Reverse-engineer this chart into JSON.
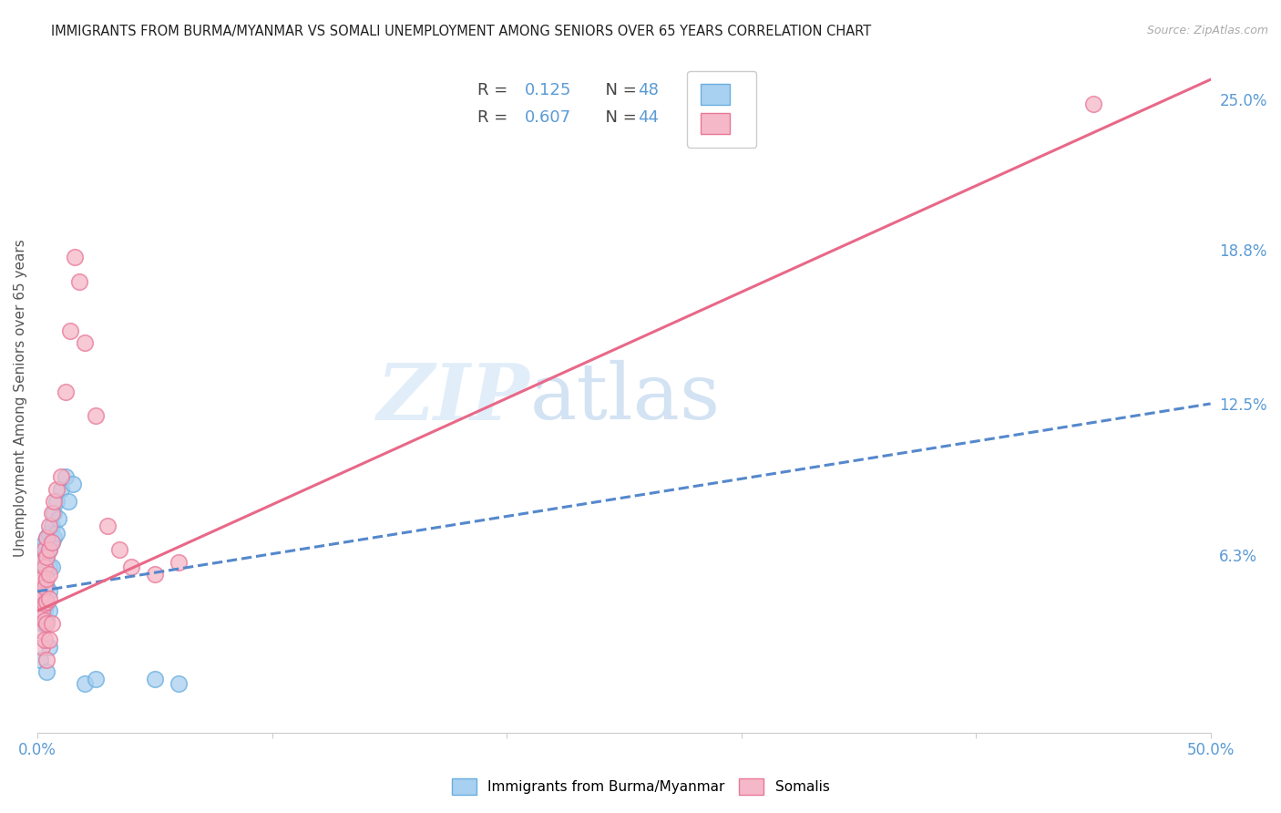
{
  "title": "IMMIGRANTS FROM BURMA/MYANMAR VS SOMALI UNEMPLOYMENT AMONG SENIORS OVER 65 YEARS CORRELATION CHART",
  "source": "Source: ZipAtlas.com",
  "ylabel": "Unemployment Among Seniors over 65 years",
  "xlim": [
    0,
    0.5
  ],
  "ylim": [
    -0.01,
    0.265
  ],
  "yticks_right": [
    0.0,
    0.063,
    0.125,
    0.188,
    0.25
  ],
  "ytick_right_labels": [
    "",
    "6.3%",
    "12.5%",
    "18.8%",
    "25.0%"
  ],
  "watermark_zip": "ZIP",
  "watermark_atlas": "atlas",
  "blue_color": "#a8d0f0",
  "pink_color": "#f5b8c8",
  "blue_edge_color": "#6aaee0",
  "pink_edge_color": "#e87898",
  "blue_line_color": "#5588cc",
  "pink_line_color": "#e86888",
  "title_color": "#222222",
  "axis_label_color": "#555555",
  "tick_color": "#5b9bd5",
  "grid_color": "#dddddd",
  "scatter_blue": [
    [
      0.001,
      0.062
    ],
    [
      0.001,
      0.055
    ],
    [
      0.001,
      0.048
    ],
    [
      0.001,
      0.042
    ],
    [
      0.002,
      0.065
    ],
    [
      0.002,
      0.058
    ],
    [
      0.002,
      0.053
    ],
    [
      0.002,
      0.048
    ],
    [
      0.002,
      0.044
    ],
    [
      0.002,
      0.04
    ],
    [
      0.002,
      0.035
    ],
    [
      0.003,
      0.068
    ],
    [
      0.003,
      0.062
    ],
    [
      0.003,
      0.056
    ],
    [
      0.003,
      0.05
    ],
    [
      0.003,
      0.045
    ],
    [
      0.003,
      0.04
    ],
    [
      0.003,
      0.035
    ],
    [
      0.004,
      0.07
    ],
    [
      0.004,
      0.063
    ],
    [
      0.004,
      0.057
    ],
    [
      0.004,
      0.05
    ],
    [
      0.004,
      0.043
    ],
    [
      0.004,
      0.036
    ],
    [
      0.005,
      0.072
    ],
    [
      0.005,
      0.065
    ],
    [
      0.005,
      0.058
    ],
    [
      0.005,
      0.048
    ],
    [
      0.005,
      0.04
    ],
    [
      0.006,
      0.075
    ],
    [
      0.006,
      0.068
    ],
    [
      0.006,
      0.058
    ],
    [
      0.007,
      0.08
    ],
    [
      0.007,
      0.07
    ],
    [
      0.008,
      0.085
    ],
    [
      0.008,
      0.072
    ],
    [
      0.009,
      0.078
    ],
    [
      0.01,
      0.09
    ],
    [
      0.012,
      0.095
    ],
    [
      0.013,
      0.085
    ],
    [
      0.015,
      0.092
    ],
    [
      0.02,
      0.01
    ],
    [
      0.025,
      0.012
    ],
    [
      0.001,
      0.02
    ],
    [
      0.004,
      0.015
    ],
    [
      0.06,
      0.01
    ],
    [
      0.05,
      0.012
    ],
    [
      0.005,
      0.025
    ]
  ],
  "scatter_pink": [
    [
      0.001,
      0.052
    ],
    [
      0.001,
      0.045
    ],
    [
      0.001,
      0.038
    ],
    [
      0.002,
      0.06
    ],
    [
      0.002,
      0.053
    ],
    [
      0.002,
      0.046
    ],
    [
      0.002,
      0.04
    ],
    [
      0.002,
      0.032
    ],
    [
      0.002,
      0.025
    ],
    [
      0.003,
      0.065
    ],
    [
      0.003,
      0.058
    ],
    [
      0.003,
      0.05
    ],
    [
      0.003,
      0.043
    ],
    [
      0.003,
      0.036
    ],
    [
      0.003,
      0.028
    ],
    [
      0.004,
      0.07
    ],
    [
      0.004,
      0.062
    ],
    [
      0.004,
      0.053
    ],
    [
      0.004,
      0.044
    ],
    [
      0.004,
      0.035
    ],
    [
      0.005,
      0.075
    ],
    [
      0.005,
      0.065
    ],
    [
      0.005,
      0.055
    ],
    [
      0.005,
      0.045
    ],
    [
      0.006,
      0.08
    ],
    [
      0.006,
      0.068
    ],
    [
      0.007,
      0.085
    ],
    [
      0.008,
      0.09
    ],
    [
      0.01,
      0.095
    ],
    [
      0.012,
      0.13
    ],
    [
      0.014,
      0.155
    ],
    [
      0.016,
      0.185
    ],
    [
      0.018,
      0.175
    ],
    [
      0.02,
      0.15
    ],
    [
      0.025,
      0.12
    ],
    [
      0.03,
      0.075
    ],
    [
      0.035,
      0.065
    ],
    [
      0.04,
      0.058
    ],
    [
      0.05,
      0.055
    ],
    [
      0.06,
      0.06
    ],
    [
      0.45,
      0.248
    ],
    [
      0.004,
      0.02
    ],
    [
      0.005,
      0.028
    ],
    [
      0.006,
      0.035
    ]
  ],
  "blue_trendline_x": [
    0.0,
    0.5
  ],
  "blue_trendline_y": [
    0.048,
    0.125
  ],
  "pink_trendline_x": [
    0.0,
    0.5
  ],
  "pink_trendline_y": [
    0.04,
    0.258
  ]
}
